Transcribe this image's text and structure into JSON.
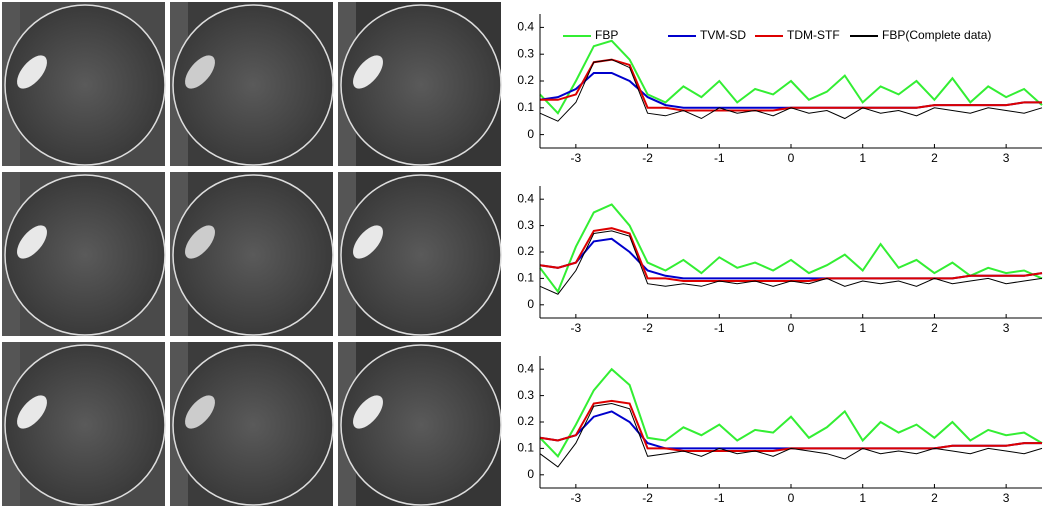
{
  "chart_data": [
    {
      "type": "line",
      "legend": true,
      "x": [
        -3.5,
        -3.25,
        -3,
        -2.75,
        -2.5,
        -2.25,
        -2,
        -1.75,
        -1.5,
        -1.25,
        -1,
        -0.75,
        -0.5,
        -0.25,
        0,
        0.25,
        0.5,
        0.75,
        1,
        1.25,
        1.5,
        1.75,
        2,
        2.25,
        2.5,
        2.75,
        3,
        3.25,
        3.5
      ],
      "xlim": [
        -3.5,
        3.5
      ],
      "ylim": [
        -0.05,
        0.45
      ],
      "xticks": [
        -3,
        -2,
        -1,
        0,
        1,
        2,
        3
      ],
      "yticks": [
        0,
        0.1,
        0.2,
        0.3,
        0.4
      ],
      "series": [
        {
          "name": "FBP",
          "color": "#33ee33",
          "values": [
            0.15,
            0.08,
            0.2,
            0.33,
            0.35,
            0.28,
            0.15,
            0.12,
            0.18,
            0.14,
            0.2,
            0.12,
            0.17,
            0.15,
            0.2,
            0.13,
            0.16,
            0.22,
            0.12,
            0.18,
            0.15,
            0.2,
            0.13,
            0.21,
            0.12,
            0.18,
            0.14,
            0.17,
            0.11
          ]
        },
        {
          "name": "TVM-SD",
          "color": "#0000cc",
          "values": [
            0.13,
            0.14,
            0.17,
            0.23,
            0.23,
            0.2,
            0.14,
            0.11,
            0.1,
            0.1,
            0.1,
            0.1,
            0.1,
            0.1,
            0.1,
            0.1,
            0.1,
            0.1,
            0.1,
            0.1,
            0.1,
            0.1,
            0.11,
            0.11,
            0.11,
            0.11,
            0.11,
            0.12,
            0.12
          ]
        },
        {
          "name": "TDM-STF",
          "color": "#dd0000",
          "values": [
            0.13,
            0.13,
            0.15,
            0.27,
            0.28,
            0.26,
            0.1,
            0.1,
            0.09,
            0.09,
            0.09,
            0.09,
            0.09,
            0.09,
            0.1,
            0.1,
            0.1,
            0.1,
            0.1,
            0.1,
            0.1,
            0.1,
            0.11,
            0.11,
            0.11,
            0.11,
            0.11,
            0.12,
            0.12
          ]
        },
        {
          "name": "FBP(Complete data)",
          "color": "#000000",
          "values": [
            0.08,
            0.05,
            0.12,
            0.27,
            0.28,
            0.25,
            0.08,
            0.07,
            0.09,
            0.06,
            0.1,
            0.08,
            0.09,
            0.07,
            0.1,
            0.08,
            0.09,
            0.06,
            0.1,
            0.08,
            0.09,
            0.07,
            0.1,
            0.09,
            0.08,
            0.1,
            0.09,
            0.08,
            0.1
          ]
        }
      ]
    },
    {
      "type": "line",
      "legend": false,
      "x": [
        -3.5,
        -3.25,
        -3,
        -2.75,
        -2.5,
        -2.25,
        -2,
        -1.75,
        -1.5,
        -1.25,
        -1,
        -0.75,
        -0.5,
        -0.25,
        0,
        0.25,
        0.5,
        0.75,
        1,
        1.25,
        1.5,
        1.75,
        2,
        2.25,
        2.5,
        2.75,
        3,
        3.25,
        3.5
      ],
      "xlim": [
        -3.5,
        3.5
      ],
      "ylim": [
        -0.05,
        0.45
      ],
      "xticks": [
        -3,
        -2,
        -1,
        0,
        1,
        2,
        3
      ],
      "yticks": [
        0,
        0.1,
        0.2,
        0.3,
        0.4
      ],
      "series": [
        {
          "color": "#33ee33",
          "values": [
            0.14,
            0.05,
            0.22,
            0.35,
            0.38,
            0.3,
            0.16,
            0.13,
            0.17,
            0.12,
            0.18,
            0.14,
            0.16,
            0.13,
            0.17,
            0.12,
            0.15,
            0.19,
            0.13,
            0.23,
            0.14,
            0.17,
            0.12,
            0.16,
            0.11,
            0.14,
            0.12,
            0.13,
            0.1
          ]
        },
        {
          "color": "#0000cc",
          "values": [
            0.15,
            0.14,
            0.16,
            0.24,
            0.25,
            0.2,
            0.13,
            0.11,
            0.1,
            0.1,
            0.1,
            0.1,
            0.1,
            0.1,
            0.1,
            0.1,
            0.1,
            0.1,
            0.1,
            0.1,
            0.1,
            0.1,
            0.1,
            0.1,
            0.11,
            0.11,
            0.11,
            0.11,
            0.12
          ]
        },
        {
          "color": "#dd0000",
          "values": [
            0.15,
            0.14,
            0.16,
            0.28,
            0.29,
            0.27,
            0.1,
            0.1,
            0.09,
            0.09,
            0.09,
            0.09,
            0.09,
            0.09,
            0.09,
            0.09,
            0.1,
            0.1,
            0.1,
            0.1,
            0.1,
            0.1,
            0.1,
            0.1,
            0.11,
            0.11,
            0.11,
            0.11,
            0.12
          ]
        },
        {
          "color": "#000000",
          "values": [
            0.07,
            0.04,
            0.13,
            0.27,
            0.28,
            0.26,
            0.08,
            0.07,
            0.08,
            0.07,
            0.09,
            0.08,
            0.09,
            0.07,
            0.09,
            0.08,
            0.1,
            0.07,
            0.09,
            0.08,
            0.09,
            0.07,
            0.1,
            0.08,
            0.09,
            0.1,
            0.08,
            0.09,
            0.1
          ]
        }
      ]
    },
    {
      "type": "line",
      "legend": false,
      "x": [
        -3.5,
        -3.25,
        -3,
        -2.75,
        -2.5,
        -2.25,
        -2,
        -1.75,
        -1.5,
        -1.25,
        -1,
        -0.75,
        -0.5,
        -0.25,
        0,
        0.25,
        0.5,
        0.75,
        1,
        1.25,
        1.5,
        1.75,
        2,
        2.25,
        2.5,
        2.75,
        3,
        3.25,
        3.5
      ],
      "xlim": [
        -3.5,
        3.5
      ],
      "ylim": [
        -0.05,
        0.45
      ],
      "xticks": [
        -3,
        -2,
        -1,
        0,
        1,
        2,
        3
      ],
      "yticks": [
        0,
        0.1,
        0.2,
        0.3,
        0.4
      ],
      "series": [
        {
          "color": "#33ee33",
          "values": [
            0.14,
            0.07,
            0.19,
            0.32,
            0.4,
            0.34,
            0.14,
            0.13,
            0.18,
            0.15,
            0.19,
            0.13,
            0.17,
            0.16,
            0.22,
            0.14,
            0.18,
            0.24,
            0.13,
            0.2,
            0.16,
            0.19,
            0.14,
            0.2,
            0.13,
            0.17,
            0.15,
            0.16,
            0.12
          ]
        },
        {
          "color": "#0000cc",
          "values": [
            0.14,
            0.13,
            0.15,
            0.22,
            0.24,
            0.2,
            0.12,
            0.1,
            0.1,
            0.1,
            0.1,
            0.1,
            0.1,
            0.1,
            0.1,
            0.1,
            0.1,
            0.1,
            0.1,
            0.1,
            0.1,
            0.1,
            0.1,
            0.11,
            0.11,
            0.11,
            0.11,
            0.12,
            0.12
          ]
        },
        {
          "color": "#dd0000",
          "values": [
            0.14,
            0.13,
            0.15,
            0.27,
            0.28,
            0.27,
            0.1,
            0.1,
            0.09,
            0.09,
            0.09,
            0.09,
            0.09,
            0.09,
            0.1,
            0.1,
            0.1,
            0.1,
            0.1,
            0.1,
            0.1,
            0.1,
            0.1,
            0.11,
            0.11,
            0.11,
            0.11,
            0.12,
            0.12
          ]
        },
        {
          "color": "#000000",
          "values": [
            0.08,
            0.03,
            0.12,
            0.26,
            0.27,
            0.25,
            0.07,
            0.08,
            0.09,
            0.07,
            0.1,
            0.08,
            0.09,
            0.07,
            0.1,
            0.09,
            0.08,
            0.06,
            0.1,
            0.08,
            0.09,
            0.08,
            0.1,
            0.09,
            0.08,
            0.1,
            0.09,
            0.08,
            0.1
          ]
        }
      ]
    }
  ]
}
